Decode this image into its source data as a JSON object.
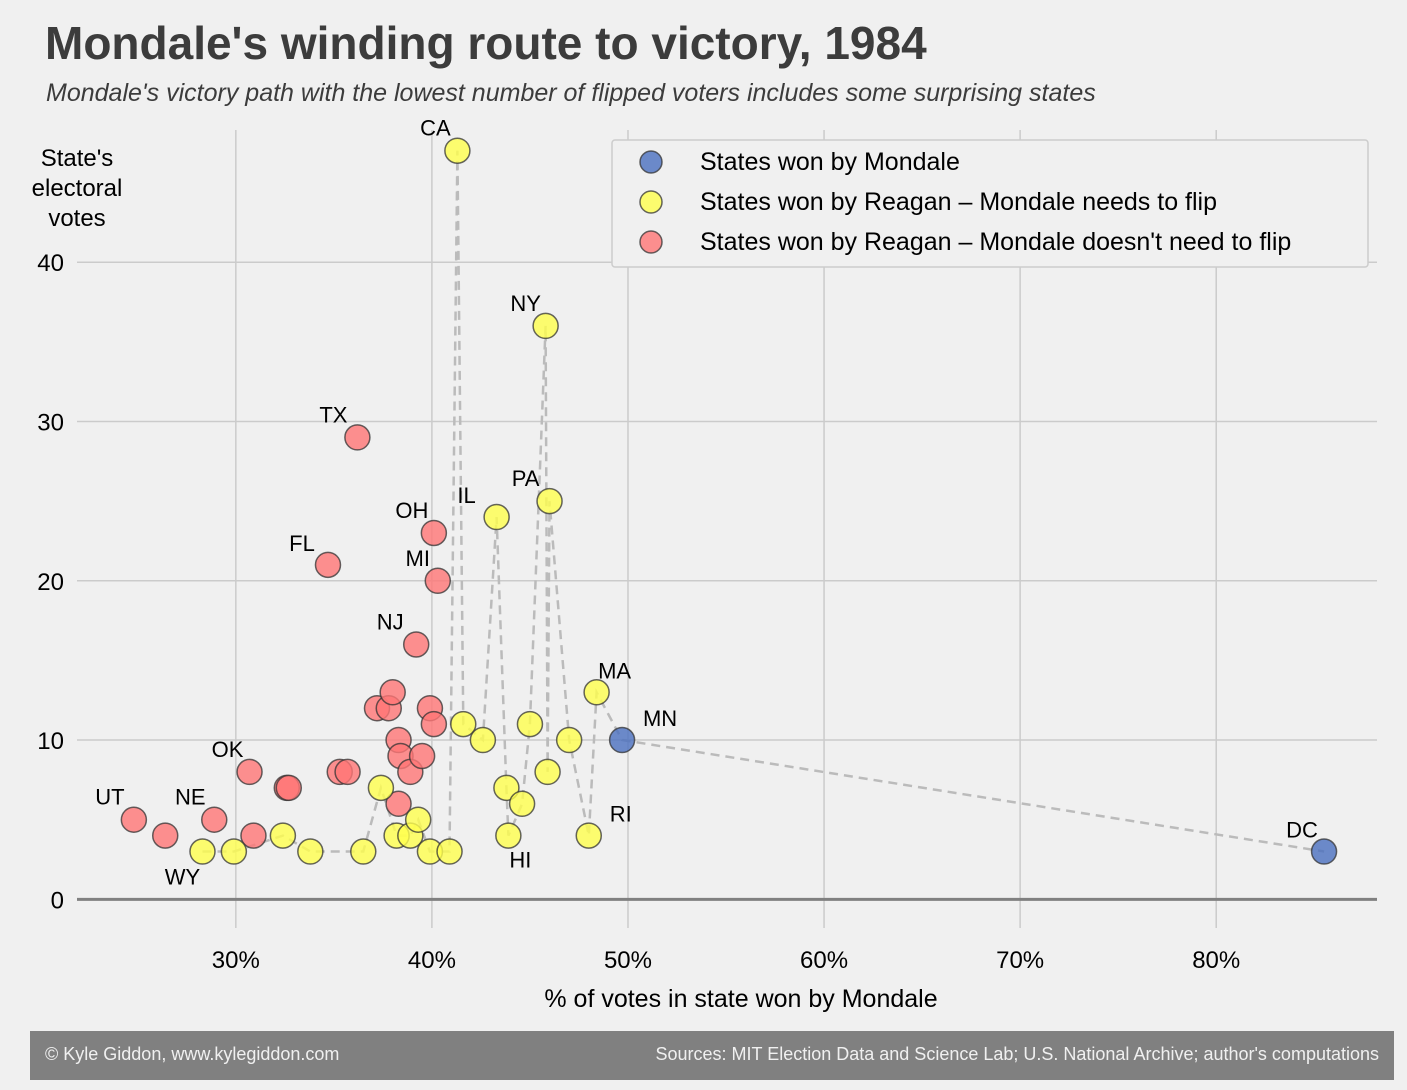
{
  "title": "Mondale's winding route to victory, 1984",
  "subtitle": "Mondale's victory path with the lowest number of flipped voters includes some surprising states",
  "footer": {
    "credit": "© Kyle Giddon, www.kylegiddon.com",
    "sources": "Sources: MIT Election Data and Science Lab; U.S. National Archive; author's computations"
  },
  "colors": {
    "background": "#f0f0f0",
    "won": "#4a6fbf",
    "flip": "#ffff4d",
    "noflip": "#ff7575",
    "path": "#bbbbbb",
    "grid": "#cbcbcb"
  },
  "chart_data": {
    "type": "scatter",
    "title": "Mondale's winding route to victory, 1984",
    "xlabel": "% of votes in state won by Mondale",
    "ylabel": "State's electoral votes",
    "xlim": [
      21.9,
      88.2
    ],
    "ylim": [
      -1.8,
      48.3
    ],
    "xticks": [
      30,
      40,
      50,
      60,
      70,
      80
    ],
    "xtick_labels": [
      "30%",
      "40%",
      "50%",
      "60%",
      "70%",
      "80%"
    ],
    "yticks": [
      0,
      10,
      20,
      30,
      40
    ],
    "ytick_labels": [
      "0",
      "10",
      "20",
      "30",
      "40"
    ],
    "grid": true,
    "legend_position": "top-right",
    "series": [
      {
        "name": "States won by Mondale",
        "color": "#4a6fbf",
        "points": [
          {
            "label": "MN",
            "x": 49.7,
            "y": 10
          },
          {
            "label": "DC",
            "x": 85.5,
            "y": 3
          }
        ]
      },
      {
        "name": "States won by Reagan – Mondale needs to flip",
        "color": "#ffff4d",
        "points": [
          {
            "label": "WY",
            "x": 28.3,
            "y": 3
          },
          {
            "label": "",
            "x": 29.9,
            "y": 3
          },
          {
            "label": "",
            "x": 32.4,
            "y": 4
          },
          {
            "label": "",
            "x": 33.8,
            "y": 3
          },
          {
            "label": "",
            "x": 36.5,
            "y": 3
          },
          {
            "label": "",
            "x": 37.4,
            "y": 7
          },
          {
            "label": "",
            "x": 38.2,
            "y": 4
          },
          {
            "label": "",
            "x": 38.9,
            "y": 4
          },
          {
            "label": "",
            "x": 39.3,
            "y": 5
          },
          {
            "label": "",
            "x": 39.9,
            "y": 3
          },
          {
            "label": "",
            "x": 40.9,
            "y": 3
          },
          {
            "label": "CA",
            "x": 41.3,
            "y": 47
          },
          {
            "label": "",
            "x": 41.6,
            "y": 11
          },
          {
            "label": "",
            "x": 42.6,
            "y": 10
          },
          {
            "label": "IL",
            "x": 43.3,
            "y": 24
          },
          {
            "label": "",
            "x": 43.8,
            "y": 7
          },
          {
            "label": "HI",
            "x": 43.9,
            "y": 4
          },
          {
            "label": "",
            "x": 44.6,
            "y": 6
          },
          {
            "label": "",
            "x": 45.0,
            "y": 11
          },
          {
            "label": "NY",
            "x": 45.8,
            "y": 36
          },
          {
            "label": "",
            "x": 45.9,
            "y": 8
          },
          {
            "label": "PA",
            "x": 46.0,
            "y": 25
          },
          {
            "label": "",
            "x": 47.0,
            "y": 10
          },
          {
            "label": "RI",
            "x": 48.0,
            "y": 4
          },
          {
            "label": "MA",
            "x": 48.4,
            "y": 13
          }
        ]
      },
      {
        "name": "States won by Reagan – Mondale doesn't need to flip",
        "color": "#ff7575",
        "points": [
          {
            "label": "UT",
            "x": 24.8,
            "y": 5
          },
          {
            "label": "",
            "x": 26.4,
            "y": 4
          },
          {
            "label": "NE",
            "x": 28.9,
            "y": 5
          },
          {
            "label": "OK",
            "x": 30.7,
            "y": 8
          },
          {
            "label": "",
            "x": 30.9,
            "y": 4
          },
          {
            "label": "",
            "x": 32.6,
            "y": 7
          },
          {
            "label": "",
            "x": 32.7,
            "y": 7
          },
          {
            "label": "FL",
            "x": 34.7,
            "y": 21
          },
          {
            "label": "",
            "x": 35.3,
            "y": 8
          },
          {
            "label": "",
            "x": 35.7,
            "y": 8
          },
          {
            "label": "TX",
            "x": 36.2,
            "y": 29
          },
          {
            "label": "",
            "x": 37.2,
            "y": 12
          },
          {
            "label": "",
            "x": 37.8,
            "y": 12
          },
          {
            "label": "",
            "x": 38.0,
            "y": 13
          },
          {
            "label": "",
            "x": 38.3,
            "y": 10
          },
          {
            "label": "",
            "x": 38.3,
            "y": 6
          },
          {
            "label": "",
            "x": 38.4,
            "y": 9
          },
          {
            "label": "",
            "x": 38.9,
            "y": 8
          },
          {
            "label": "NJ",
            "x": 39.2,
            "y": 16
          },
          {
            "label": "",
            "x": 39.5,
            "y": 9
          },
          {
            "label": "",
            "x": 39.9,
            "y": 12
          },
          {
            "label": "OH",
            "x": 40.1,
            "y": 23
          },
          {
            "label": "",
            "x": 40.1,
            "y": 11
          },
          {
            "label": "MI",
            "x": 40.3,
            "y": 20
          }
        ]
      }
    ],
    "path": [
      [
        28.3,
        3
      ],
      [
        29.9,
        3
      ],
      [
        32.4,
        4
      ],
      [
        33.8,
        3
      ],
      [
        36.5,
        3
      ],
      [
        37.4,
        7
      ],
      [
        38.2,
        4
      ],
      [
        38.9,
        4
      ],
      [
        39.3,
        5
      ],
      [
        39.9,
        3
      ],
      [
        40.9,
        3
      ],
      [
        41.3,
        47
      ],
      [
        41.6,
        11
      ],
      [
        42.6,
        10
      ],
      [
        43.3,
        24
      ],
      [
        43.8,
        7
      ],
      [
        43.9,
        4
      ],
      [
        44.6,
        6
      ],
      [
        45.0,
        11
      ],
      [
        45.8,
        36
      ],
      [
        45.9,
        8
      ],
      [
        46.0,
        25
      ],
      [
        47.0,
        10
      ],
      [
        48.0,
        4
      ],
      [
        48.4,
        13
      ],
      [
        49.7,
        10
      ],
      [
        85.5,
        3
      ]
    ],
    "label_offsets_note": "labels drawn adjacent to their points"
  }
}
